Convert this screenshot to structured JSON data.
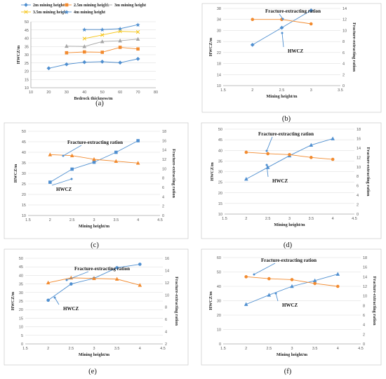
{
  "chart_data": [
    {
      "panel": "(a)",
      "type": "line",
      "xlabel": "Bedrock thickness/m",
      "ylabel": "HWCZ/m",
      "xlim": [
        10,
        80
      ],
      "xticks": [
        10,
        20,
        30,
        40,
        50,
        60,
        70,
        80
      ],
      "ylim": [
        10,
        50
      ],
      "yticks": [
        10,
        15,
        20,
        25,
        30,
        35,
        40,
        45,
        50
      ],
      "legend": "top",
      "series": [
        {
          "name": "2m  mining height",
          "color": "#4f8fd0",
          "marker": "diamond",
          "x": [
            20,
            30,
            40,
            50,
            60,
            70
          ],
          "y": [
            21.8,
            24.2,
            25.5,
            25.8,
            25.2,
            27.5
          ]
        },
        {
          "name": "2.5m  mining height",
          "color": "#f28a2e",
          "marker": "square",
          "x": [
            30,
            40,
            50,
            60,
            70
          ],
          "y": [
            31.2,
            31.7,
            31.5,
            34.5,
            33.5
          ]
        },
        {
          "name": "3m  mining height",
          "color": "#a5a5a5",
          "marker": "triangle",
          "x": [
            30,
            40,
            50,
            60,
            70
          ],
          "y": [
            35.2,
            35.0,
            38.0,
            38.5,
            39.5
          ]
        },
        {
          "name": "3.5m  mining height",
          "color": "#f5c518",
          "marker": "x",
          "x": [
            40,
            50,
            60,
            70
          ],
          "y": [
            39.8,
            42.0,
            44.2,
            43.8
          ]
        },
        {
          "name": "4m  mining height",
          "color": "#4f8fd0",
          "marker": "star",
          "x": [
            40,
            50,
            60,
            70
          ],
          "y": [
            45.3,
            45.3,
            45.8,
            48.2
          ]
        }
      ]
    },
    {
      "panel": "(b)",
      "type": "line",
      "xlabel": "Mining height/m",
      "ylabel": "HWCZ/m",
      "y2label": "Fracture-extracting ration",
      "xlim": [
        1.5,
        3.5
      ],
      "xticks": [
        "1.5",
        "2",
        "2.5",
        "3",
        "3.5"
      ],
      "ylim": [
        10,
        38
      ],
      "yticks": [
        10,
        14,
        18,
        22,
        26,
        30,
        34,
        38
      ],
      "y2lim": [
        0,
        14
      ],
      "y2ticks": [
        0,
        2,
        4,
        6,
        8,
        10,
        12,
        14
      ],
      "annotations": [
        "Fracture-extracting ration",
        "HWCZ"
      ],
      "series": [
        {
          "name": "HWCZ",
          "color": "#4f8fd0",
          "marker": "diamond",
          "axis": "left",
          "x": [
            2,
            2.5,
            3
          ],
          "y": [
            24.8,
            31.0,
            37.3
          ]
        },
        {
          "name": "Fracture-extracting ration",
          "color": "#f28a2e",
          "marker": "circle",
          "axis": "right",
          "x": [
            2,
            2.5,
            3
          ],
          "y": [
            12.0,
            12.0,
            11.2
          ]
        }
      ]
    },
    {
      "panel": "(c)",
      "type": "line",
      "xlabel": "Mining height/m",
      "ylabel": "HWCZ/m",
      "y2label": "Fracture-extracting ration",
      "xlim": [
        1.5,
        4.5
      ],
      "xticks": [
        "1.5",
        "2",
        "2.5",
        "3",
        "3.5",
        "4",
        "4.5"
      ],
      "ylim": [
        10,
        50
      ],
      "yticks": [
        10,
        15,
        20,
        25,
        30,
        35,
        40,
        45,
        50
      ],
      "y2lim": [
        0,
        18
      ],
      "y2ticks": [
        0,
        2,
        4,
        6,
        8,
        10,
        12,
        14,
        16,
        18
      ],
      "annotations": [
        "Fracture-extracting ration",
        "HWCZ"
      ],
      "series": [
        {
          "name": "HWCZ",
          "color": "#4f8fd0",
          "marker": "square",
          "axis": "left",
          "x": [
            2,
            2.5,
            3,
            3.5,
            4
          ],
          "y": [
            25.8,
            32.0,
            35.3,
            40.0,
            45.5
          ]
        },
        {
          "name": "Fracture-extracting ration",
          "color": "#f28a2e",
          "marker": "triangle",
          "axis": "right",
          "x": [
            2,
            2.5,
            3,
            3.5,
            4
          ],
          "y": [
            13.0,
            12.8,
            12.0,
            11.6,
            11.2
          ]
        }
      ]
    },
    {
      "panel": "(d)",
      "type": "line",
      "xlabel": "Mining height/m",
      "ylabel": "HWCZ/m",
      "y2label": "Fracture-extracting ration",
      "xlim": [
        1.5,
        4.5
      ],
      "xticks": [
        "1.5",
        "2",
        "2.5",
        "3",
        "3.5",
        "4",
        "4.5"
      ],
      "ylim": [
        10,
        50
      ],
      "yticks": [
        10,
        15,
        20,
        25,
        30,
        35,
        40,
        45,
        50
      ],
      "y2lim": [
        0,
        18
      ],
      "y2ticks": [
        0,
        2,
        4,
        6,
        8,
        10,
        12,
        14,
        16,
        18
      ],
      "annotations": [
        "Fracture-extracting ration",
        "HWCZ"
      ],
      "series": [
        {
          "name": "HWCZ",
          "color": "#4f8fd0",
          "marker": "triangle",
          "axis": "left",
          "x": [
            2,
            2.5,
            3,
            3.5,
            4
          ],
          "y": [
            26.5,
            32.0,
            37.5,
            42.5,
            45.5
          ]
        },
        {
          "name": "Fracture-extracting ration",
          "color": "#f28a2e",
          "marker": "circle",
          "axis": "right",
          "x": [
            2,
            2.5,
            3,
            3.5,
            4
          ],
          "y": [
            13.1,
            12.8,
            12.6,
            12.0,
            11.6
          ]
        }
      ]
    },
    {
      "panel": "(e)",
      "type": "line",
      "xlabel": "Mining height/m",
      "ylabel": "HWCZ/m",
      "y2label": "Fracture-extracting ration",
      "xlim": [
        1.5,
        4.5
      ],
      "xticks": [
        "1.5",
        "2",
        "2.5",
        "3",
        "3.5",
        "4",
        "4.5"
      ],
      "ylim": [
        0,
        50
      ],
      "yticks": [
        0,
        5,
        10,
        15,
        20,
        25,
        30,
        35,
        40,
        45,
        50
      ],
      "y2lim": [
        2,
        16
      ],
      "y2ticks": [
        2,
        4,
        6,
        8,
        10,
        12,
        14,
        16
      ],
      "annotations": [
        "Fracture-extracting ration",
        "HWCZ"
      ],
      "series": [
        {
          "name": "HWCZ",
          "color": "#4f8fd0",
          "marker": "circle",
          "axis": "left",
          "x": [
            2,
            2.5,
            3,
            3.5,
            4
          ],
          "y": [
            25.5,
            35.0,
            38.3,
            44.5,
            46.5
          ]
        },
        {
          "name": "Fracture-extracting ration",
          "color": "#f28a2e",
          "marker": "triangle",
          "axis": "right",
          "x": [
            2,
            2.5,
            3,
            3.5,
            4
          ],
          "y": [
            12.0,
            12.8,
            12.7,
            12.6,
            11.6
          ]
        }
      ]
    },
    {
      "panel": "(f)",
      "type": "line",
      "xlabel": "Mining height/m",
      "ylabel": "HWCZ/m",
      "y2label": "Fracture-extracting ration",
      "xlim": [
        1.5,
        4.5
      ],
      "xticks": [
        "1.5",
        "2",
        "2.5",
        "3",
        "3.5",
        "4",
        "4.5"
      ],
      "ylim": [
        0,
        60
      ],
      "yticks": [
        0,
        10,
        20,
        30,
        40,
        50,
        60
      ],
      "y2lim": [
        0,
        18
      ],
      "y2ticks": [
        0,
        2,
        4,
        6,
        8,
        10,
        12,
        14,
        16,
        18
      ],
      "annotations": [
        "Fracture-extracting ration",
        "HWCZ"
      ],
      "series": [
        {
          "name": "HWCZ",
          "color": "#4f8fd0",
          "marker": "triangle",
          "axis": "left",
          "x": [
            2,
            2.5,
            3,
            3.5,
            4
          ],
          "y": [
            27.5,
            34.0,
            40.0,
            44.0,
            48.5
          ]
        },
        {
          "name": "Fracture-extracting ration",
          "color": "#f28a2e",
          "marker": "circle",
          "axis": "right",
          "x": [
            2,
            2.5,
            3,
            3.5,
            4
          ],
          "y": [
            14.0,
            13.6,
            13.4,
            12.6,
            12.0
          ]
        }
      ]
    }
  ]
}
